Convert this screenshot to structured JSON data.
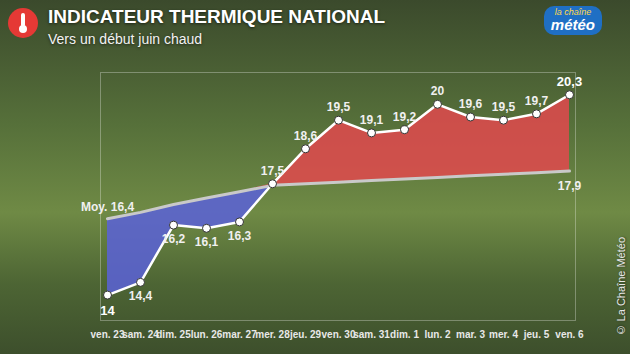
{
  "chart_data": {
    "type": "line",
    "title": "INDICATEUR THERMIQUE NATIONAL",
    "subtitle": "Vers un début juin chaud",
    "logo": [
      "la chaîne",
      "météo"
    ],
    "copyright": "© La Chaîne Météo",
    "categories": [
      "ven. 23",
      "sam. 24",
      "dim. 25",
      "lun. 26",
      "mar. 27",
      "mer. 28",
      "jeu. 29",
      "ven. 30",
      "sam. 31",
      "dim. 1",
      "lun. 2",
      "mar. 3",
      "mer. 4",
      "jeu. 5",
      "ven. 6"
    ],
    "series": [
      {
        "color": "#ffffff",
        "marker": "circle",
        "values": [
          14,
          14.4,
          16.2,
          16.1,
          16.3,
          17.5,
          18.6,
          19.5,
          19.1,
          19.2,
          20,
          19.6,
          19.5,
          19.7,
          20.3
        ],
        "value_labels": [
          "14",
          "14,4",
          "16,2",
          "16,1",
          "16,3",
          "17,5",
          "18,6",
          "19,5",
          "19,1",
          "19,2",
          "20",
          "19,6",
          "19,5",
          "19,7",
          "20,3"
        ]
      },
      {
        "color": "#c9c9c9",
        "values": [
          16.4,
          16.6,
          16.85,
          17.05,
          17.25,
          17.45,
          17.5,
          17.55,
          17.6,
          17.65,
          17.7,
          17.75,
          17.8,
          17.85,
          17.9
        ],
        "value_labels": [
          "Moy. 16,4",
          null,
          null,
          null,
          null,
          null,
          null,
          null,
          null,
          null,
          null,
          null,
          null,
          null,
          "17,9"
        ]
      }
    ],
    "colors": [
      "#5a62d8",
      "#e2494e"
    ],
    "ylim": [
      13.2,
      21
    ],
    "tick_labels": "x",
    "data_labels": true
  }
}
